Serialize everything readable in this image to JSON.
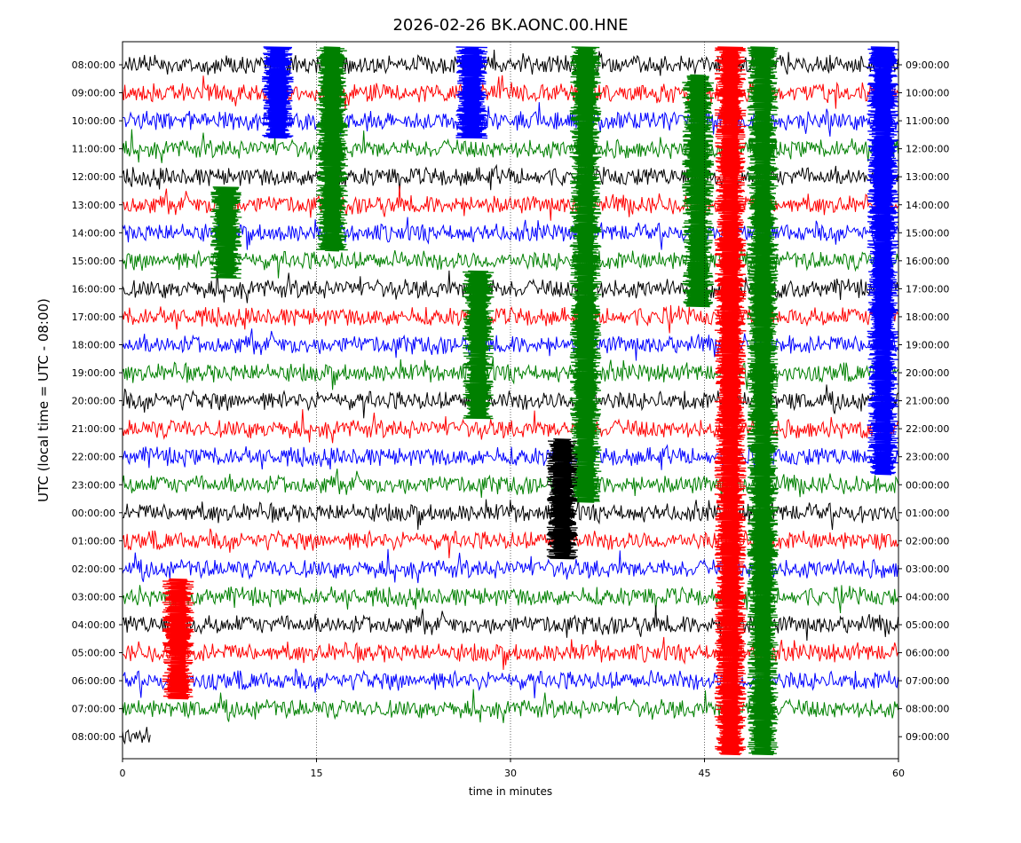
{
  "chart_data": {
    "type": "line",
    "title": "2026-02-26 BK.AONC.00.HNE",
    "xlabel": "time in minutes",
    "ylabel": "UTC (local time = UTC - 08:00)",
    "xlim": [
      0,
      60
    ],
    "x_ticks": [
      "0",
      "15",
      "30",
      "45",
      "60"
    ],
    "left_tick_labels": [
      "08:00:00",
      "09:00:00",
      "10:00:00",
      "11:00:00",
      "12:00:00",
      "13:00:00",
      "14:00:00",
      "15:00:00",
      "16:00:00",
      "17:00:00",
      "18:00:00",
      "19:00:00",
      "20:00:00",
      "21:00:00",
      "22:00:00",
      "23:00:00",
      "00:00:00",
      "01:00:00",
      "02:00:00",
      "03:00:00",
      "04:00:00",
      "05:00:00",
      "06:00:00",
      "07:00:00",
      "08:00:00"
    ],
    "right_tick_labels": [
      "09:00:00",
      "10:00:00",
      "11:00:00",
      "12:00:00",
      "13:00:00",
      "14:00:00",
      "15:00:00",
      "16:00:00",
      "17:00:00",
      "18:00:00",
      "19:00:00",
      "20:00:00",
      "21:00:00",
      "22:00:00",
      "23:00:00",
      "00:00:00",
      "01:00:00",
      "02:00:00",
      "03:00:00",
      "04:00:00",
      "05:00:00",
      "06:00:00",
      "07:00:00",
      "08:00:00",
      "09:00:00"
    ],
    "trace_colors": [
      "#000000",
      "#ff0000",
      "#0000ff",
      "#008000"
    ],
    "vertical_gridlines_at_minutes": [
      15,
      30,
      45
    ],
    "events": [
      {
        "minute": 16.2,
        "hour_from": 0,
        "hour_to": 6,
        "color": "#008000"
      },
      {
        "minute": 12.0,
        "hour_from": 0,
        "hour_to": 2,
        "color": "#0000ff"
      },
      {
        "minute": 27.0,
        "hour_from": 0,
        "hour_to": 2,
        "color": "#0000ff"
      },
      {
        "minute": 35.8,
        "hour_from": 0,
        "hour_to": 15,
        "color": "#008000"
      },
      {
        "minute": 44.5,
        "hour_from": 1,
        "hour_to": 8,
        "color": "#008000"
      },
      {
        "minute": 47.0,
        "hour_from": 0,
        "hour_to": 24,
        "color": "#ff0000"
      },
      {
        "minute": 49.5,
        "hour_from": 0,
        "hour_to": 24,
        "color": "#008000"
      },
      {
        "minute": 58.8,
        "hour_from": 0,
        "hour_to": 14,
        "color": "#0000ff"
      },
      {
        "minute": 27.5,
        "hour_from": 8,
        "hour_to": 12,
        "color": "#008000"
      },
      {
        "minute": 8.0,
        "hour_from": 5,
        "hour_to": 7,
        "color": "#008000"
      },
      {
        "minute": 4.3,
        "hour_from": 19,
        "hour_to": 22,
        "color": "#ff0000"
      },
      {
        "minute": 34.0,
        "hour_from": 14,
        "hour_to": 17,
        "color": "#000000"
      }
    ]
  }
}
